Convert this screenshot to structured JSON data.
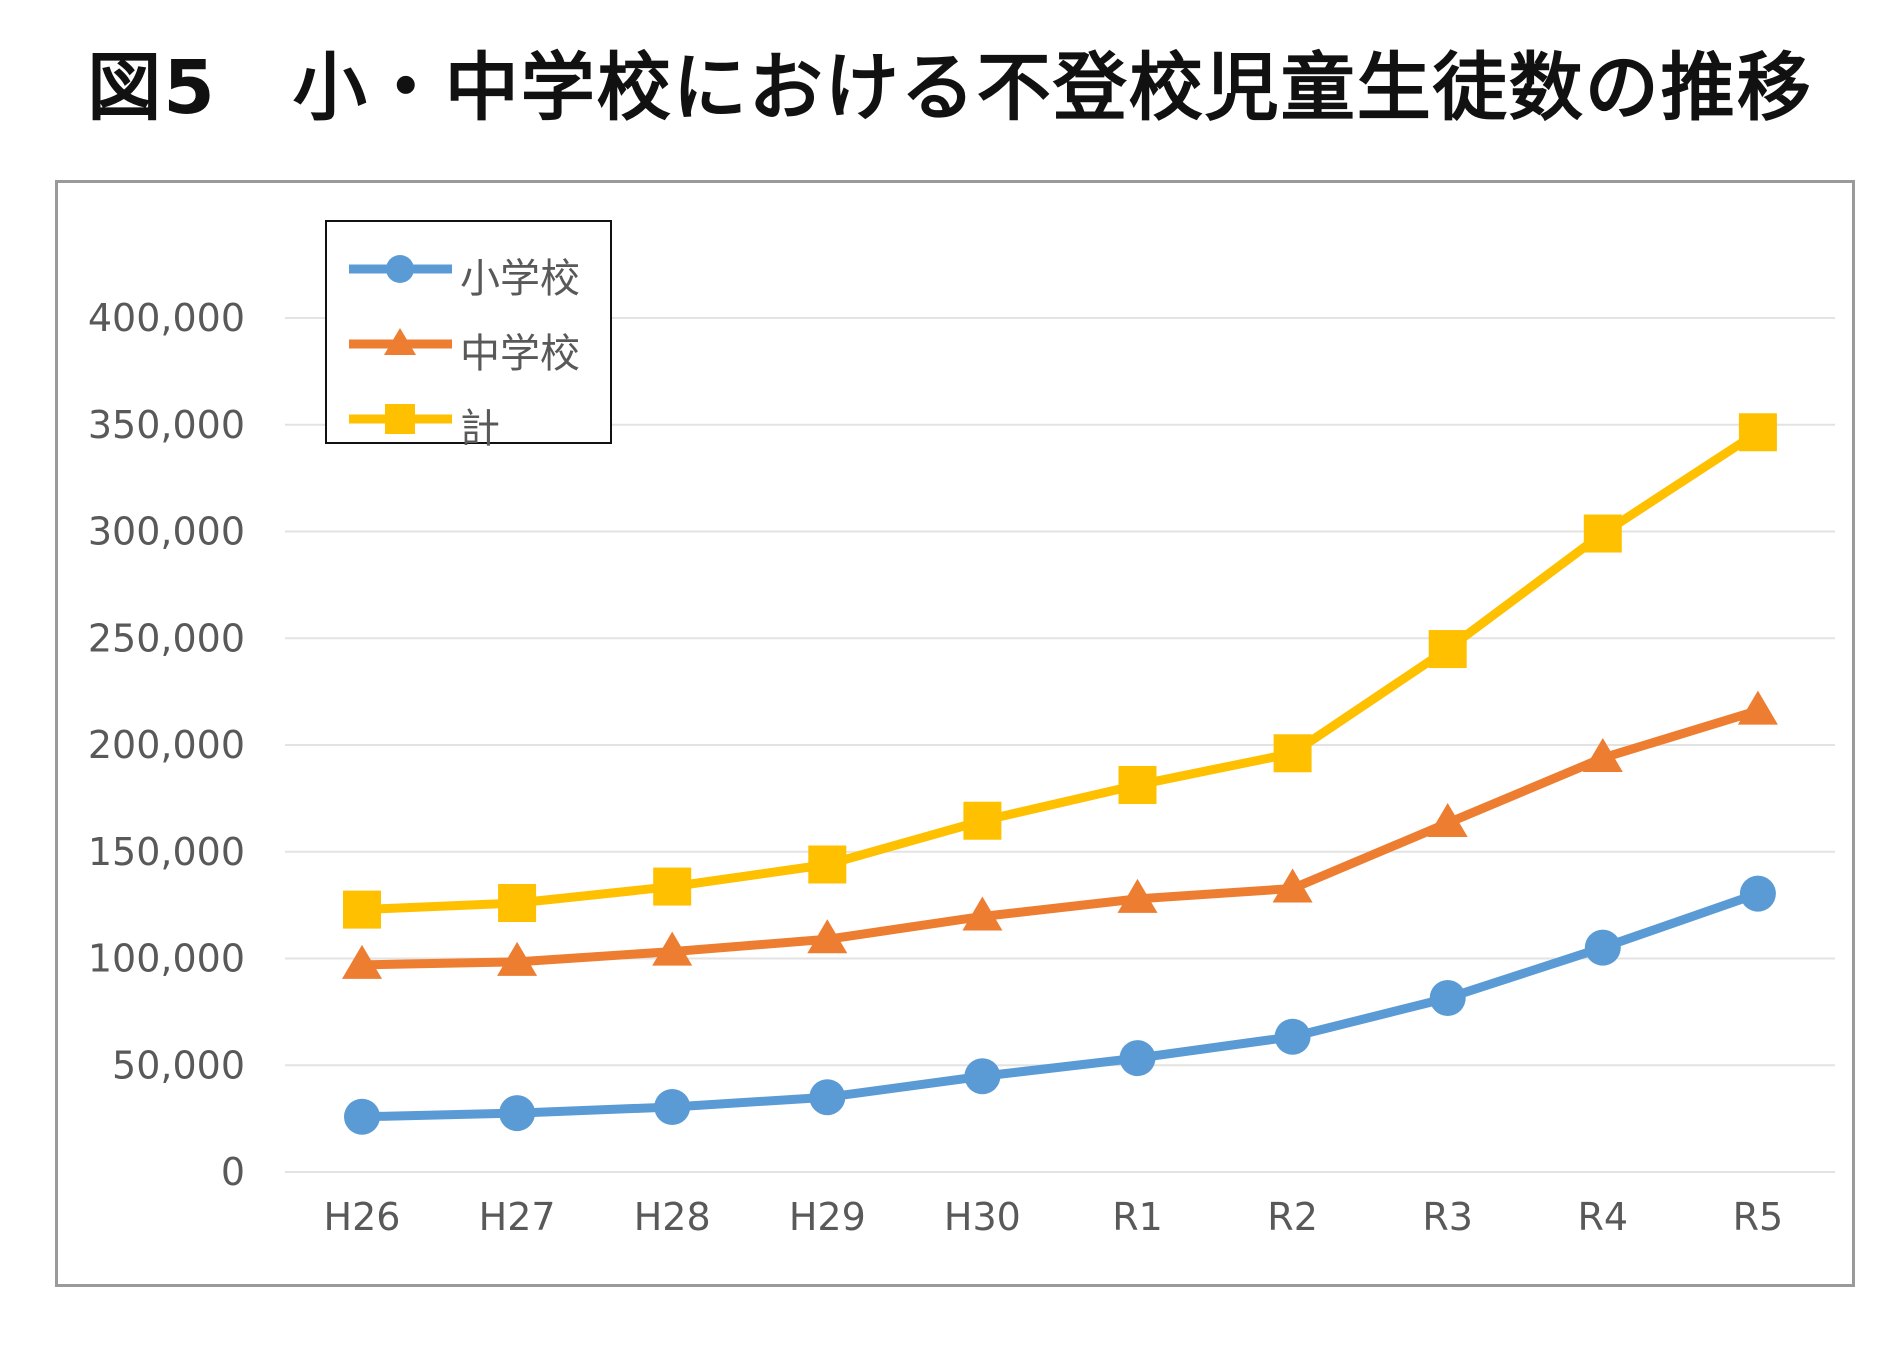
{
  "title": "図5　小・中学校における不登校児童生徒数の推移",
  "colors": {
    "elementary": "#5b9bd5",
    "junior": "#ed7d31",
    "total": "#ffc000",
    "grid": "#e3e3e3",
    "axis_text": "#595959",
    "frame": "#9a9a9a"
  },
  "chart_data": {
    "type": "line",
    "title": "図5　小・中学校における不登校児童生徒数の推移",
    "xlabel": "",
    "ylabel": "",
    "categories": [
      "H26",
      "H27",
      "H28",
      "H29",
      "H30",
      "R1",
      "R2",
      "R3",
      "R4",
      "R5"
    ],
    "ylim": [
      0,
      400000
    ],
    "yticks": [
      0,
      50000,
      100000,
      150000,
      200000,
      250000,
      300000,
      350000,
      400000
    ],
    "ytick_labels": [
      "0",
      "50,000",
      "100,000",
      "150,000",
      "200,000",
      "250,000",
      "300,000",
      "350,000",
      "400,000"
    ],
    "grid": true,
    "legend_position": "top-left",
    "series": [
      {
        "name": "小学校",
        "marker": "circle",
        "color": "#5b9bd5",
        "values": [
          25864,
          27583,
          30448,
          35032,
          44841,
          53350,
          63350,
          81498,
          105112,
          130370
        ]
      },
      {
        "name": "中学校",
        "marker": "triangle",
        "color": "#ed7d31",
        "values": [
          97033,
          98408,
          103235,
          108999,
          119687,
          127922,
          132777,
          163442,
          193936,
          216112
        ]
      },
      {
        "name": "計",
        "marker": "square",
        "color": "#ffc000",
        "values": [
          122897,
          125991,
          133683,
          144031,
          164528,
          181272,
          196127,
          244940,
          299048,
          346482
        ]
      }
    ]
  }
}
